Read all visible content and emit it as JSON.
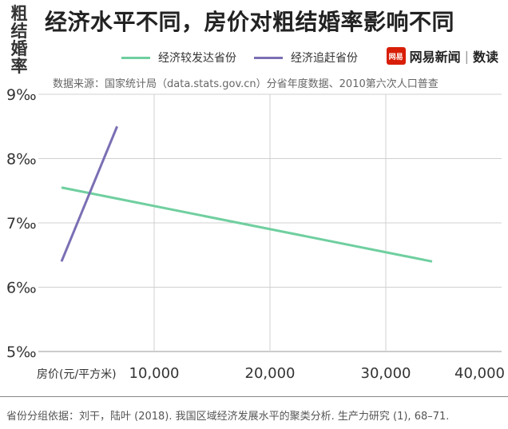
{
  "ylabel_text": "粗\n结\n婚\n率",
  "title": "经济水平不同，房价对粗结婚率影响不同",
  "legend": {
    "developed": "经济较发达省份",
    "catching_up": "经济追赶省份"
  },
  "brand": {
    "logo_text": "网易",
    "name": "网易新闻",
    "sep": "|",
    "section": "数读"
  },
  "source": "数据来源：国家统计局（data.stats.gov.cn）分省年度数据、2010第六次人口普查",
  "footnote": "省份分组依据：刘干，陆叶 (2018). 我国区域经济发展水平的聚类分析. 生产力研究 (1), 68–71.",
  "colors": {
    "developed": "#6fcf9f",
    "catching_up": "#7b6fb4",
    "grid": "#d0d0d0",
    "axis_text": "#333333"
  },
  "chart_data": {
    "type": "line",
    "title": "经济水平不同，房价对粗结婚率影响不同",
    "xlabel": "房价(元/平方米)",
    "ylabel": "粗结婚率",
    "xlim": [
      0,
      40000
    ],
    "ylim": [
      5,
      9
    ],
    "x_ticks": [
      10000,
      20000,
      30000,
      40000
    ],
    "x_tick_labels": [
      "10,000",
      "20,000",
      "30,000",
      "40,000"
    ],
    "y_ticks": [
      5,
      6,
      7,
      8,
      9
    ],
    "y_tick_labels": [
      "5‰",
      "6‰",
      "7‰",
      "8‰",
      "9‰"
    ],
    "grid": true,
    "series": [
      {
        "name": "经济较发达省份",
        "color": "#6fcf9f",
        "x": [
          2000,
          34000
        ],
        "y": [
          7.55,
          6.4
        ]
      },
      {
        "name": "经济追赶省份",
        "color": "#7b6fb4",
        "x": [
          2000,
          6800
        ],
        "y": [
          6.4,
          8.5
        ]
      }
    ]
  }
}
